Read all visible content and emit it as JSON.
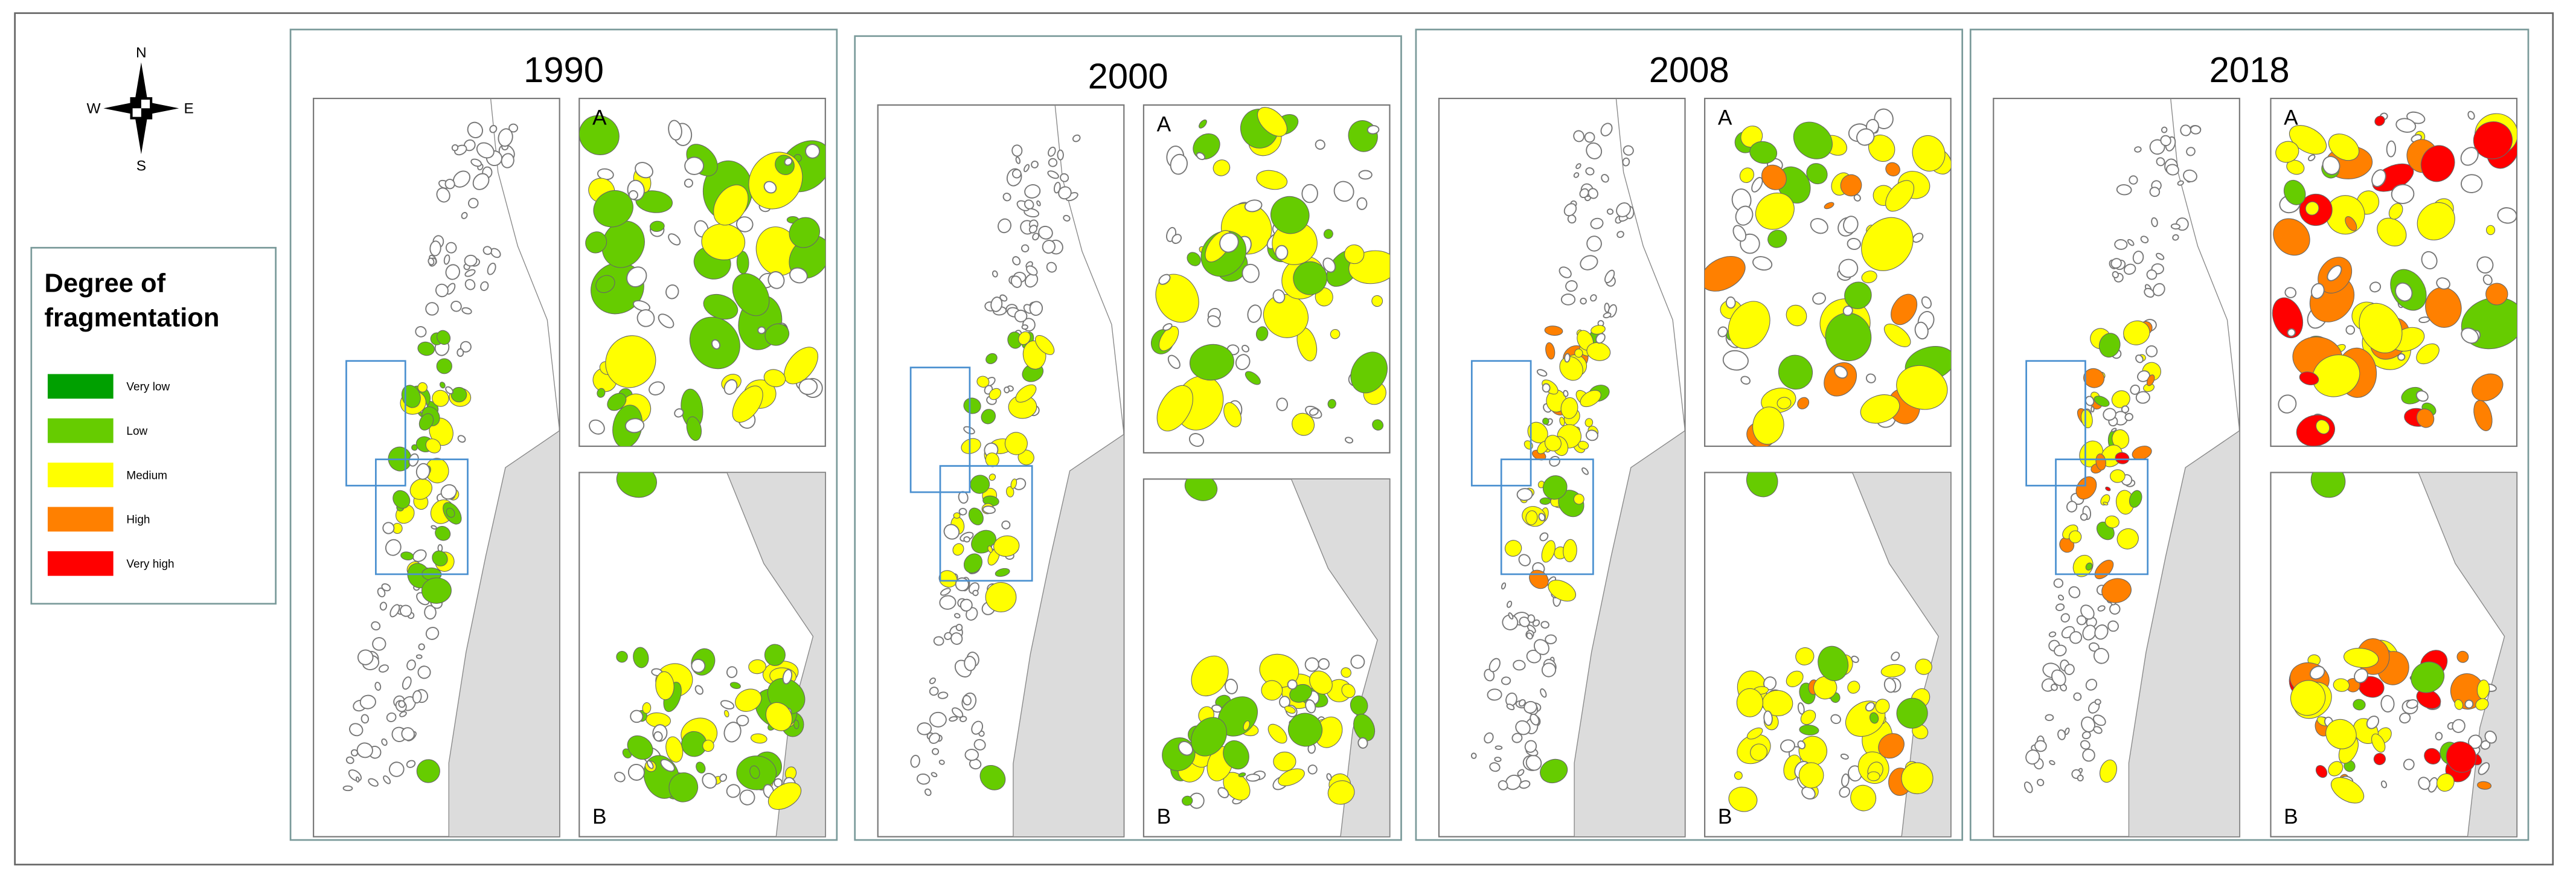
{
  "compass": {
    "n": "N",
    "s": "S",
    "e": "E",
    "w": "W"
  },
  "legend": {
    "title": "Degree of fragmentation",
    "items": [
      {
        "label": "Very low",
        "color": "#00a000"
      },
      {
        "label": "Low",
        "color": "#66cc00"
      },
      {
        "label": "Medium",
        "color": "#ffff00"
      },
      {
        "label": "High",
        "color": "#ff8000"
      },
      {
        "label": "Very high",
        "color": "#ff0000"
      }
    ]
  },
  "panels": [
    {
      "year": "1990",
      "inset_a": "A",
      "inset_b": "B"
    },
    {
      "year": "2000",
      "inset_a": "A",
      "inset_b": "B"
    },
    {
      "year": "2008",
      "inset_a": "A",
      "inset_b": "B"
    },
    {
      "year": "2018",
      "inset_a": "A",
      "inset_b": "B"
    }
  ]
}
